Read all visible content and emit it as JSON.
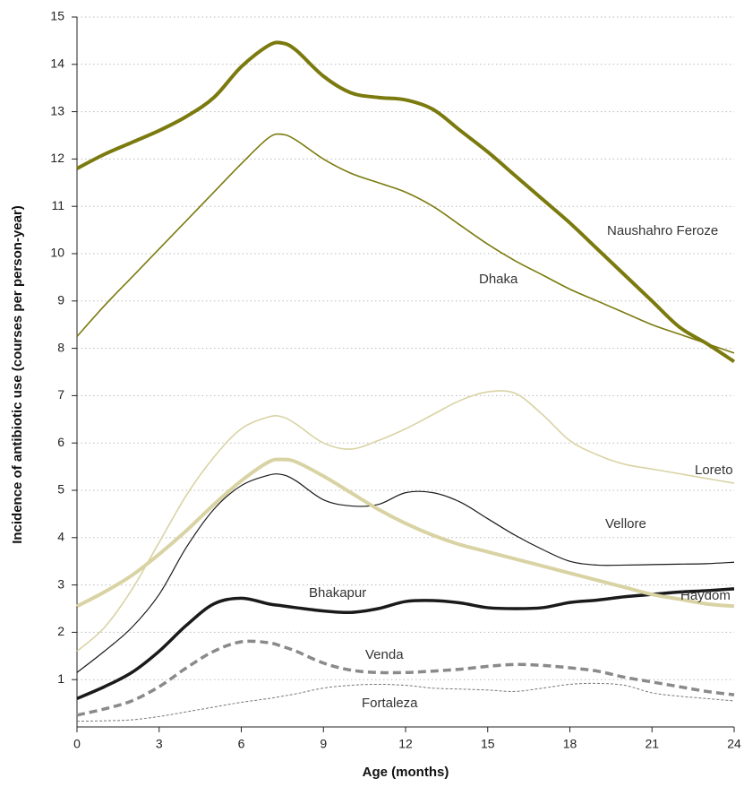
{
  "chart_data": {
    "type": "line",
    "xlabel": "Age (months)",
    "ylabel": "Incidence of antibiotic use (courses per person-year)",
    "x": [
      0,
      1,
      2,
      3,
      4,
      5,
      6,
      7,
      7.5,
      8,
      9,
      10,
      11,
      12,
      13,
      14,
      15,
      16,
      17,
      18,
      19,
      20,
      21,
      22,
      23,
      24
    ],
    "xlim": [
      0,
      24
    ],
    "xticks": [
      0,
      3,
      6,
      9,
      12,
      15,
      18,
      21,
      24
    ],
    "ylim": [
      0,
      15
    ],
    "yticks": [
      1,
      2,
      3,
      4,
      5,
      6,
      7,
      8,
      9,
      10,
      11,
      12,
      13,
      14,
      15
    ],
    "grid": true,
    "series": [
      {
        "name": "Naushahro Feroze",
        "color": "#7b7a0e",
        "values": [
          11.8,
          12.1,
          12.35,
          12.6,
          12.9,
          13.3,
          13.95,
          14.4,
          14.45,
          14.3,
          13.75,
          13.4,
          13.3,
          13.25,
          13.05,
          12.6,
          12.15,
          11.65,
          11.15,
          10.65,
          10.1,
          9.55,
          9.0,
          8.45,
          8.1,
          7.72
        ]
      },
      {
        "name": "Dhaka",
        "color": "#7b7a0e",
        "values": [
          8.25,
          8.9,
          9.5,
          10.1,
          10.7,
          11.3,
          11.9,
          12.45,
          12.52,
          12.4,
          12.0,
          11.7,
          11.5,
          11.3,
          11.0,
          10.6,
          10.2,
          9.85,
          9.55,
          9.25,
          9.0,
          8.75,
          8.5,
          8.3,
          8.1,
          7.9
        ]
      },
      {
        "name": "Loreto",
        "color": "#d9d3a4",
        "values": [
          1.6,
          2.1,
          2.9,
          3.9,
          4.9,
          5.7,
          6.3,
          6.55,
          6.55,
          6.4,
          6.0,
          5.87,
          6.05,
          6.3,
          6.6,
          6.9,
          7.08,
          7.05,
          6.6,
          6.05,
          5.75,
          5.55,
          5.45,
          5.35,
          5.25,
          5.15
        ]
      },
      {
        "name": "Vellore",
        "color": "#1a1a1a",
        "values": [
          1.15,
          1.6,
          2.1,
          2.8,
          3.8,
          4.6,
          5.1,
          5.32,
          5.33,
          5.2,
          4.8,
          4.67,
          4.7,
          4.95,
          4.95,
          4.75,
          4.4,
          4.05,
          3.75,
          3.5,
          3.42,
          3.42,
          3.43,
          3.44,
          3.45,
          3.48
        ]
      },
      {
        "name": "Bhakapur",
        "color": "#1a1a1a",
        "values": [
          0.6,
          0.85,
          1.15,
          1.6,
          2.15,
          2.6,
          2.72,
          2.6,
          2.56,
          2.52,
          2.45,
          2.42,
          2.5,
          2.65,
          2.67,
          2.62,
          2.52,
          2.5,
          2.52,
          2.63,
          2.68,
          2.75,
          2.8,
          2.85,
          2.88,
          2.92
        ]
      },
      {
        "name": "Haydom",
        "color": "#d9d3a4",
        "values": [
          2.55,
          2.85,
          3.2,
          3.65,
          4.15,
          4.7,
          5.2,
          5.6,
          5.65,
          5.6,
          5.3,
          4.95,
          4.6,
          4.3,
          4.05,
          3.85,
          3.7,
          3.55,
          3.4,
          3.25,
          3.1,
          2.95,
          2.8,
          2.7,
          2.6,
          2.55
        ]
      },
      {
        "name": "Venda",
        "color": "#8a8a8a",
        "values": [
          0.25,
          0.38,
          0.55,
          0.85,
          1.25,
          1.6,
          1.8,
          1.78,
          1.7,
          1.6,
          1.35,
          1.2,
          1.15,
          1.15,
          1.18,
          1.22,
          1.28,
          1.32,
          1.3,
          1.25,
          1.18,
          1.05,
          0.95,
          0.85,
          0.75,
          0.68
        ]
      },
      {
        "name": "Fortaleza",
        "color": "#777777",
        "values": [
          0.12,
          0.13,
          0.15,
          0.22,
          0.32,
          0.42,
          0.52,
          0.6,
          0.65,
          0.7,
          0.82,
          0.88,
          0.9,
          0.88,
          0.82,
          0.8,
          0.78,
          0.75,
          0.82,
          0.9,
          0.92,
          0.88,
          0.72,
          0.65,
          0.6,
          0.55
        ]
      }
    ]
  }
}
